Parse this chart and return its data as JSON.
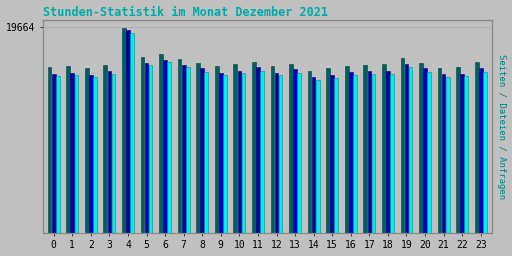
{
  "title": "Stunden-Statistik im Monat Dezember 2021",
  "title_color": "#00AAAA",
  "ylabel_right": "Seiten / Dateien / Anfragen",
  "ylabel_right_color": "#008080",
  "xlabel_ticks": [
    0,
    1,
    2,
    3,
    4,
    5,
    6,
    7,
    8,
    9,
    10,
    11,
    12,
    13,
    14,
    15,
    16,
    17,
    18,
    19,
    20,
    21,
    22,
    23
  ],
  "ytick_label": "19664",
  "ymax": 19664,
  "background_color": "#C0C0C0",
  "plot_bg_color": "#C0C0C0",
  "bar_width": 0.22,
  "colors": [
    "#006060",
    "#0000BB",
    "#00EEEE"
  ],
  "seiten": [
    15800,
    15900,
    15700,
    16000,
    19550,
    16800,
    17100,
    16600,
    16200,
    15900,
    16100,
    16300,
    15900,
    16100,
    15500,
    15700,
    15900,
    16000,
    16100,
    16700,
    16200,
    15700,
    15800,
    16300
  ],
  "dateien": [
    15200,
    15300,
    15100,
    15500,
    19400,
    16200,
    16500,
    16000,
    15700,
    15300,
    15500,
    15800,
    15300,
    15600,
    14900,
    15100,
    15400,
    15500,
    15500,
    16100,
    15700,
    15200,
    15200,
    15700
  ],
  "anfragen": [
    15000,
    15100,
    14900,
    15200,
    19100,
    16000,
    16300,
    15800,
    15400,
    15100,
    15300,
    15500,
    15100,
    15300,
    14600,
    14800,
    15100,
    15200,
    15200,
    15800,
    15400,
    14900,
    15000,
    15400
  ]
}
